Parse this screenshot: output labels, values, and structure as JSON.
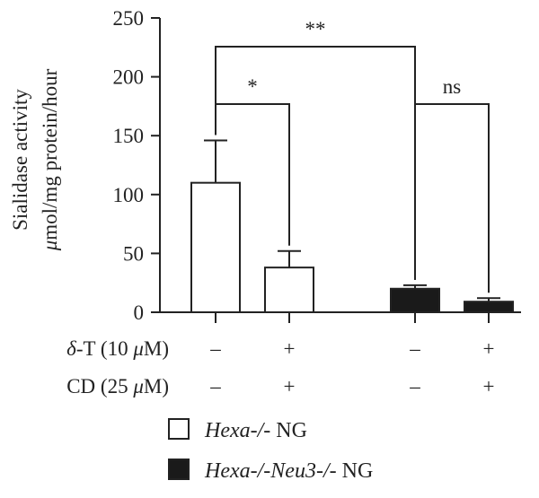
{
  "chart_data": {
    "type": "bar",
    "title": "",
    "ylabel": {
      "line1": "Sialidase activity",
      "line2_mu": "μ",
      "line2_rest": "mol/mg protein/hour"
    },
    "ylim": [
      0,
      250
    ],
    "yticks": [
      "0",
      "50",
      "100",
      "150",
      "200",
      "250"
    ],
    "grid": false,
    "bars": [
      {
        "group": "Hexa-/- NG",
        "fill": "white",
        "value": 110,
        "error": 36,
        "delta_t": "–",
        "cd": "–"
      },
      {
        "group": "Hexa-/- NG",
        "fill": "white",
        "value": 38,
        "error": 14,
        "delta_t": "+",
        "cd": "+"
      },
      {
        "group": "Hexa-/-Neu3-/- NG",
        "fill": "black",
        "value": 20,
        "error": 3,
        "delta_t": "–",
        "cd": "–"
      },
      {
        "group": "Hexa-/-Neu3-/- NG",
        "fill": "black",
        "value": 9,
        "error": 3,
        "delta_t": "+",
        "cd": "+"
      }
    ],
    "significance": [
      {
        "from": 0,
        "to": 1,
        "label": "*"
      },
      {
        "from": 0,
        "to": 2,
        "label": "**"
      },
      {
        "from": 2,
        "to": 3,
        "label": "ns"
      }
    ],
    "conditions": [
      {
        "label_sym": "δ",
        "label_rest": "-T (10 ",
        "label_unit": "μ",
        "label_end": "M)",
        "key": "delta_t"
      },
      {
        "label_sym": "",
        "label_rest": "CD (25 ",
        "label_unit": "μ",
        "label_end": "M)",
        "key": "cd"
      }
    ],
    "legend": [
      {
        "fill": "white",
        "italic": "Hexa-/-",
        "plain": " NG"
      },
      {
        "fill": "black",
        "italic": "Hexa-/-Neu3-/-",
        "plain": " NG"
      }
    ],
    "colors": {
      "black_bar": "#1a1a1a",
      "stroke": "#222222"
    }
  }
}
